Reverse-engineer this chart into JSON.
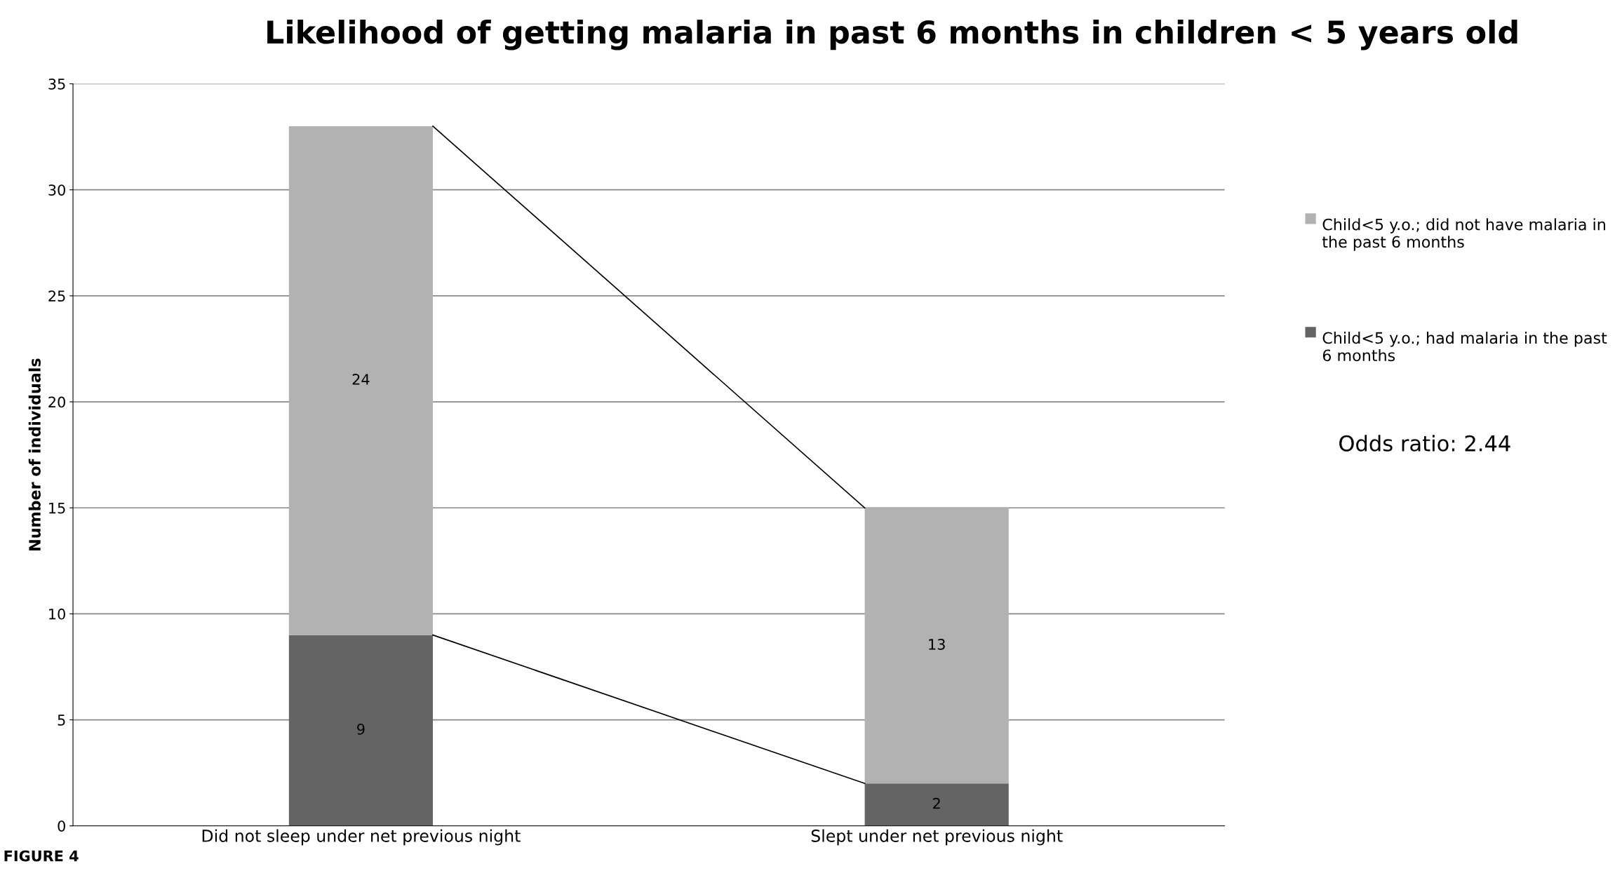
{
  "chart_data": {
    "type": "bar",
    "title": "Likelihood of getting malaria in past 6 months in children < 5 years old",
    "ylabel": "Number of individuals",
    "categories": [
      "Did not sleep under net previous night",
      "Slept under net previous night"
    ],
    "series": [
      {
        "name": "Child<5 y.o.; had malaria in the past 6 months",
        "color": "#646464",
        "values": [
          9,
          2
        ]
      },
      {
        "name": "Child<5 y.o.; did not have malaria in the past 6 months",
        "color": "#b2b2b2",
        "values": [
          24,
          13
        ]
      }
    ],
    "stacked": true,
    "data_labels": true,
    "ylim": [
      0,
      35
    ],
    "yticks": [
      0,
      5,
      10,
      15,
      20,
      25,
      30,
      35
    ],
    "grid": "y",
    "legend": "right",
    "annotations": [
      "Odds ratio: 2.44",
      "FIGURE 4"
    ]
  }
}
